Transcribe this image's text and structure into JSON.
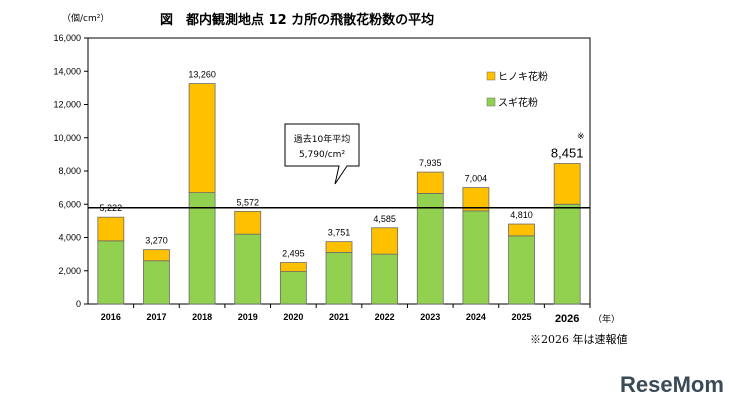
{
  "title": "図　都内観測地点 12 カ所の飛散花粉数の平均",
  "y_unit": "（個/cm²）",
  "x_unit": "（年）",
  "note": "※2026 年は速報値",
  "asterisk": "※",
  "callout": {
    "line1": "過去10年平均",
    "line2": "5,790/cm²"
  },
  "logo": "ReseMom",
  "colors": {
    "hinoki": "#FFC000",
    "sugi": "#92D050",
    "outline": "#6b6b6b",
    "avg_line": "#000000"
  },
  "chart_data": {
    "type": "bar",
    "stacked": true,
    "categories": [
      "2016",
      "2017",
      "2018",
      "2019",
      "2020",
      "2021",
      "2022",
      "2023",
      "2024",
      "2025",
      "2026"
    ],
    "series": [
      {
        "name": "スギ花粉",
        "values": [
          3800,
          2600,
          6700,
          4200,
          1950,
          3100,
          3000,
          6650,
          5600,
          4100,
          6000
        ]
      },
      {
        "name": "ヒノキ花粉",
        "values": [
          1422,
          670,
          6560,
          1372,
          545,
          651,
          1585,
          1285,
          1404,
          710,
          2451
        ]
      }
    ],
    "totals": [
      "5,222",
      "3,270",
      "13,260",
      "5,572",
      "2,495",
      "3,751",
      "4,585",
      "7,935",
      "7,004",
      "4,810",
      "8,451"
    ],
    "average": 5790,
    "ylim": [
      0,
      16000
    ],
    "yticks": [
      "0",
      "2,000",
      "4,000",
      "6,000",
      "8,000",
      "10,000",
      "12,000",
      "14,000",
      "16,000"
    ],
    "ytick_values": [
      0,
      2000,
      4000,
      6000,
      8000,
      10000,
      12000,
      14000,
      16000
    ],
    "legend_position": "top-right",
    "grid": false
  }
}
